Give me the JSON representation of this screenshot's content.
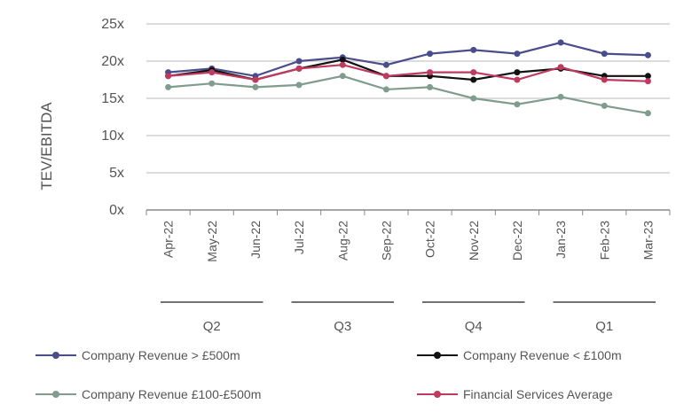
{
  "chart_data": {
    "type": "line",
    "ylabel": "TEV/EBITDA",
    "y_ticks": [
      "0x",
      "5x",
      "10x",
      "15x",
      "20x",
      "25x"
    ],
    "ylim": [
      0,
      25
    ],
    "grid": "horizontal",
    "legend_position": "bottom",
    "categories": [
      "Apr-22",
      "May-22",
      "Jun-22",
      "Jul-22",
      "Aug-22",
      "Sep-22",
      "Oct-22",
      "Nov-22",
      "Dec-22",
      "Jan-23",
      "Feb-23",
      "Mar-23"
    ],
    "quarters": [
      {
        "label": "Q2",
        "start": 0,
        "end": 2
      },
      {
        "label": "Q3",
        "start": 3,
        "end": 5
      },
      {
        "label": "Q4",
        "start": 6,
        "end": 8
      },
      {
        "label": "Q1",
        "start": 9,
        "end": 11
      }
    ],
    "series": [
      {
        "name": "Company Revenue > £500m",
        "color": "#4a4d8c",
        "values": [
          18.5,
          19.0,
          18.0,
          20.0,
          20.5,
          19.5,
          21.0,
          21.5,
          21.0,
          22.5,
          21.0,
          20.8
        ]
      },
      {
        "name": "Company Revenue < £100m",
        "color": "#111111",
        "values": [
          18.0,
          18.8,
          17.5,
          19.0,
          20.2,
          18.0,
          18.0,
          17.5,
          18.5,
          19.0,
          18.0,
          18.0
        ]
      },
      {
        "name": "Company Revenue £100-£500m",
        "color": "#7f9c8f",
        "values": [
          16.5,
          17.0,
          16.5,
          16.8,
          18.0,
          16.2,
          16.5,
          15.0,
          14.2,
          15.2,
          14.0,
          13.0
        ]
      },
      {
        "name": "Financial Services Average",
        "color": "#c0395e",
        "values": [
          18.0,
          18.5,
          17.5,
          19.0,
          19.5,
          18.0,
          18.5,
          18.5,
          17.5,
          19.2,
          17.5,
          17.3
        ]
      }
    ]
  }
}
